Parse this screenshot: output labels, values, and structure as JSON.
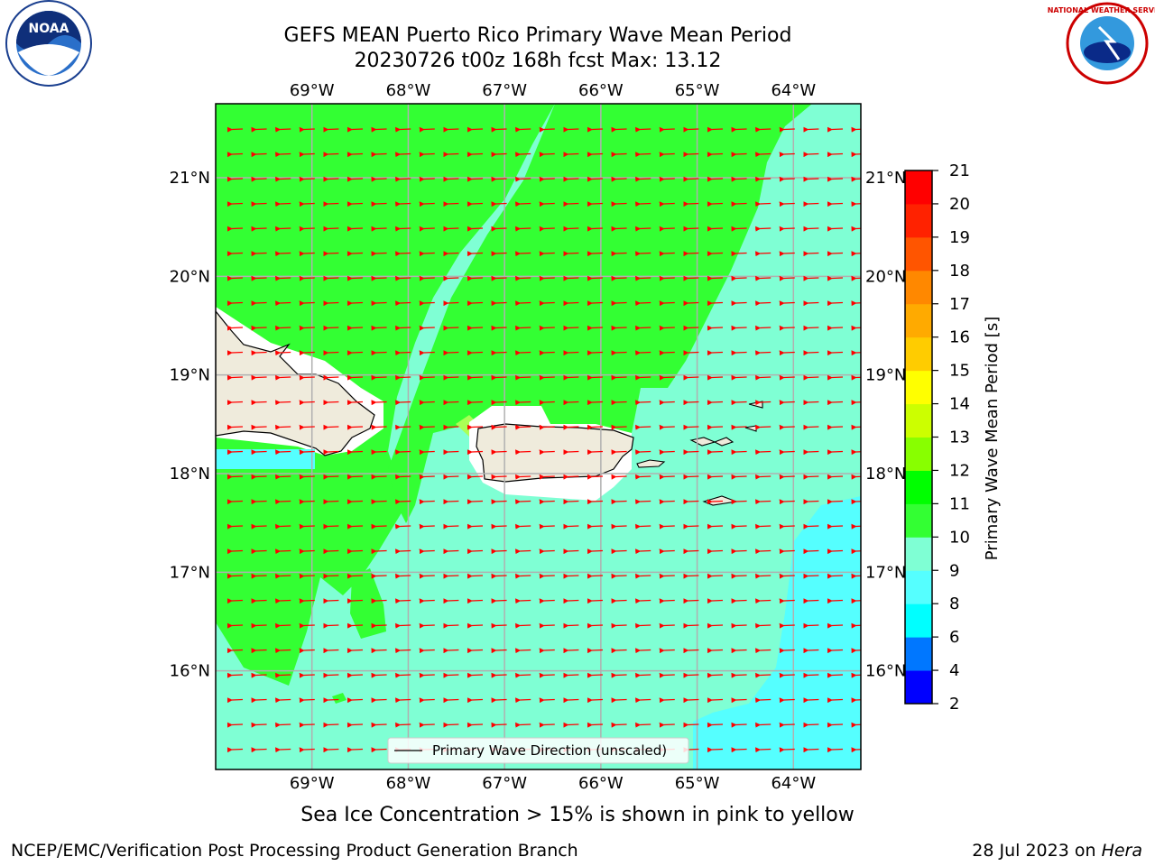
{
  "title": {
    "line1": "GEFS MEAN Puerto Rico Primary Wave Mean Period",
    "line2": "20230726 t00z 168h fcst   Max: 13.12"
  },
  "logos": {
    "left": {
      "icon": "noaa-logo",
      "text": "NOAA"
    },
    "right": {
      "icon": "nws-logo",
      "text": "NATIONAL WEATHER SERVICE"
    }
  },
  "map": {
    "lon_labels": [
      "69°W",
      "68°W",
      "67°W",
      "66°W",
      "65°W",
      "64°W"
    ],
    "lat_labels": [
      "21°N",
      "20°N",
      "19°N",
      "18°N",
      "17°N",
      "16°N"
    ],
    "lon_range": [
      -70.0,
      -63.3
    ],
    "lat_range": [
      15.0,
      21.75
    ],
    "legend_label": "Primary Wave Direction (unscaled)",
    "arrow_direction": "west",
    "colors": {
      "land": "#efebdc",
      "arrow": "#ff0000",
      "level_10_11": "#33ff33",
      "level_9_10": "#7fffd4",
      "level_8_9": "#55ffff"
    }
  },
  "colorbar": {
    "label": "Primary Wave Mean Period [s]",
    "ticks": [
      "2",
      "4",
      "6",
      "8",
      "9",
      "10",
      "11",
      "12",
      "13",
      "14",
      "15",
      "16",
      "17",
      "18",
      "19",
      "20",
      "21"
    ],
    "colors": [
      "#0000ff",
      "#0077ff",
      "#00ffff",
      "#55ffff",
      "#7fffd4",
      "#33ff33",
      "#00ff00",
      "#88ff00",
      "#ccff00",
      "#ffff00",
      "#ffcc00",
      "#ffaa00",
      "#ff8800",
      "#ff5500",
      "#ff2200",
      "#ff0000"
    ]
  },
  "footer": {
    "ice_note": "Sea Ice Concentration > 15% is shown in pink to yellow",
    "branch": "NCEP/EMC/Verification Post Processing Product Generation Branch",
    "date": "28 Jul 2023 on",
    "machine": "Hera"
  }
}
